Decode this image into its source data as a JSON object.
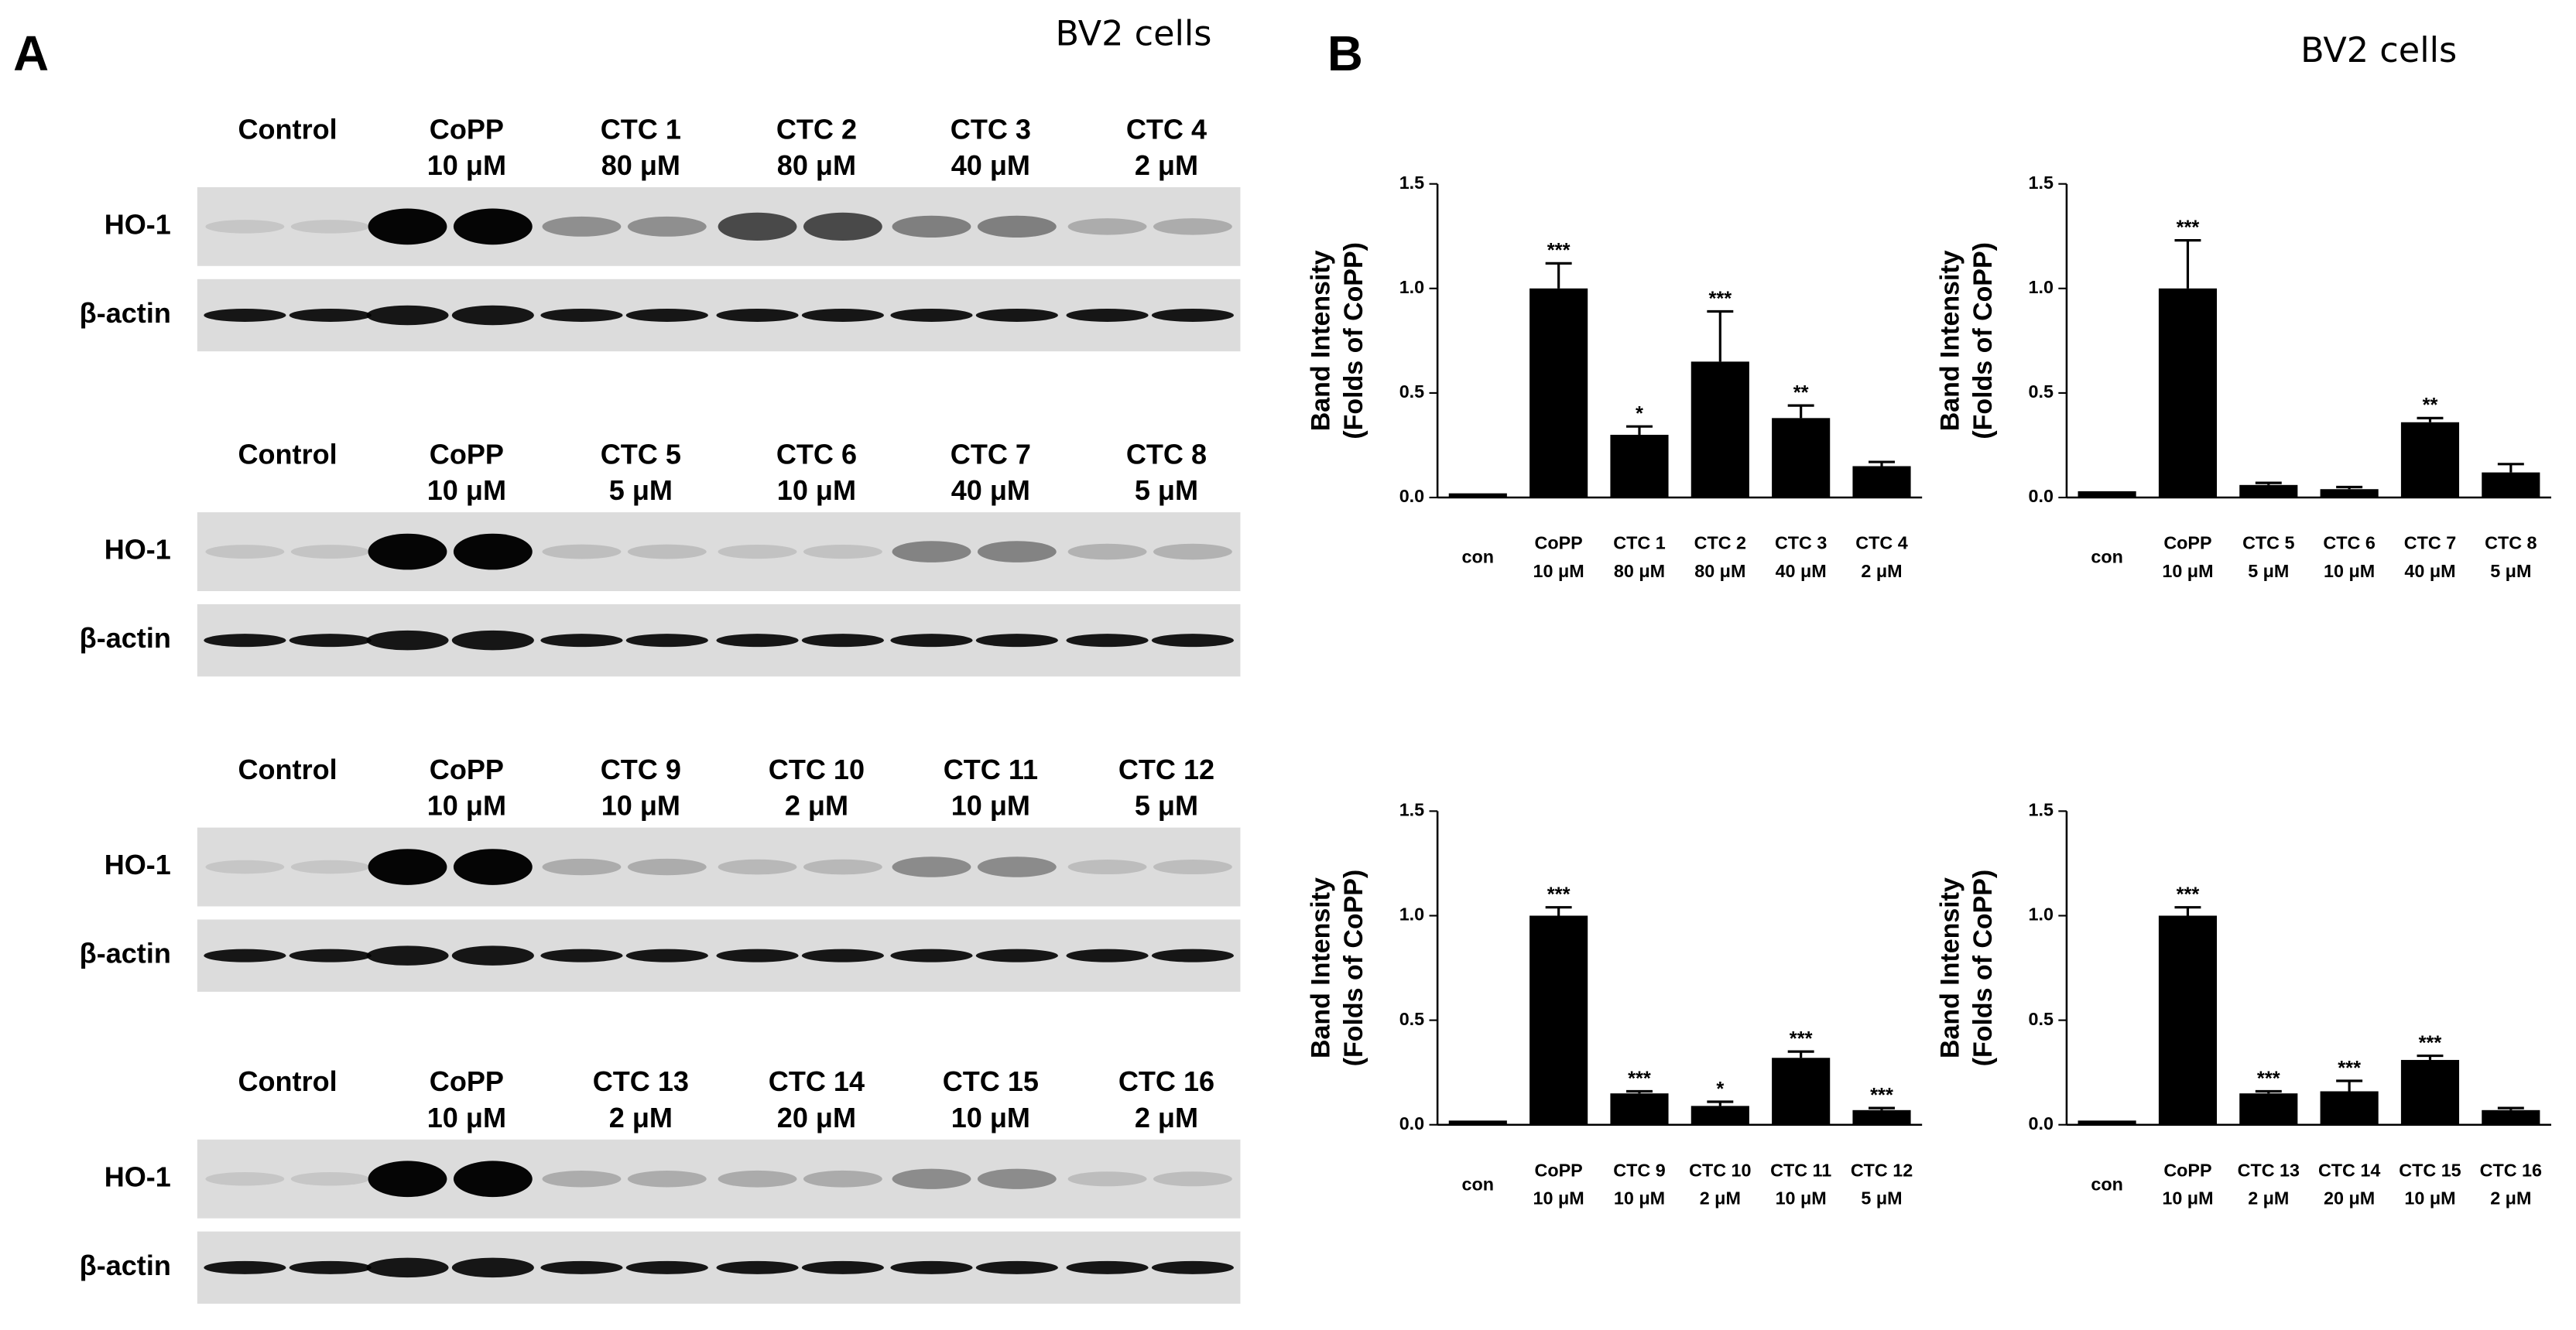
{
  "panel_a": {
    "label": "A",
    "title": "BV2 cells",
    "row_labels": [
      "HO-1",
      "β-actin"
    ],
    "blots": [
      {
        "lanes": [
          [
            "Control"
          ],
          [
            "CoPP",
            "10 μM"
          ],
          [
            "CTC 1",
            "80 μM"
          ],
          [
            "CTC 2",
            "80 μM"
          ],
          [
            "CTC 3",
            "40 μM"
          ],
          [
            "CTC 4",
            "2 μM"
          ]
        ]
      },
      {
        "lanes": [
          [
            "Control"
          ],
          [
            "CoPP",
            "10 μM"
          ],
          [
            "CTC 5",
            "5 μM"
          ],
          [
            "CTC 6",
            "10 μM"
          ],
          [
            "CTC 7",
            "40 μM"
          ],
          [
            "CTC 8",
            "5 μM"
          ]
        ]
      },
      {
        "lanes": [
          [
            "Control"
          ],
          [
            "CoPP",
            "10 μM"
          ],
          [
            "CTC 9",
            "10 μM"
          ],
          [
            "CTC 10",
            "2 μM"
          ],
          [
            "CTC 11",
            "10 μM"
          ],
          [
            "CTC 12",
            "5 μM"
          ]
        ]
      },
      {
        "lanes": [
          [
            "Control"
          ],
          [
            "CoPP",
            "10 μM"
          ],
          [
            "CTC 13",
            "2 μM"
          ],
          [
            "CTC 14",
            "20 μM"
          ],
          [
            "CTC 15",
            "10 μM"
          ],
          [
            "CTC 16",
            "2 μM"
          ]
        ]
      }
    ]
  },
  "panel_b": {
    "label": "B",
    "title": "BV2 cells"
  },
  "chart_data": [
    {
      "type": "bar",
      "ylabel": [
        "Band Intensity",
        "(Folds of CoPP)"
      ],
      "color": "#000000",
      "categories": [
        [
          "con"
        ],
        [
          "CoPP",
          "10 μM"
        ],
        [
          "CTC  1",
          "80 μM"
        ],
        [
          "CTC  2",
          "80 μM"
        ],
        [
          "CTC  3",
          "40 μM"
        ],
        [
          "CTC  4",
          "2 μM"
        ]
      ],
      "values": [
        0.02,
        1.0,
        0.3,
        0.65,
        0.38,
        0.15
      ],
      "errors": [
        0.0,
        0.12,
        0.04,
        0.24,
        0.06,
        0.02
      ],
      "annotations": [
        null,
        "***",
        "*",
        "***",
        "**",
        null
      ],
      "ylim": [
        0,
        1.5
      ],
      "yticks": [
        {
          "value": 0,
          "label": "0.0"
        },
        0.5,
        {
          "value": 1,
          "label": "1.0"
        },
        1.5
      ]
    },
    {
      "type": "bar",
      "ylabel": [
        "Band Intensity",
        "(Folds of CoPP)"
      ],
      "color": "#000000",
      "categories": [
        [
          "con"
        ],
        [
          "CoPP",
          "10 μM"
        ],
        [
          "CTC  5",
          "5 μM"
        ],
        [
          "CTC  6",
          "10 μM"
        ],
        [
          "CTC  7",
          "40 μM"
        ],
        [
          "CTC  8",
          "5 μM"
        ]
      ],
      "values": [
        0.03,
        1.0,
        0.06,
        0.04,
        0.36,
        0.12
      ],
      "errors": [
        0.0,
        0.23,
        0.01,
        0.01,
        0.02,
        0.04
      ],
      "annotations": [
        null,
        "***",
        null,
        null,
        "**",
        null
      ],
      "ylim": [
        0,
        1.5
      ],
      "yticks": [
        {
          "value": 0,
          "label": "0.0"
        },
        0.5,
        {
          "value": 1,
          "label": "1.0"
        },
        1.5
      ]
    },
    {
      "type": "bar",
      "ylabel": [
        "Band Intensity",
        "(Folds of CoPP)"
      ],
      "color": "#000000",
      "categories": [
        [
          "con"
        ],
        [
          "CoPP",
          "10 μM"
        ],
        [
          "CTC  9",
          "10 μM"
        ],
        [
          "CTC  10",
          "2 μM"
        ],
        [
          "CTC  11",
          "10 μM"
        ],
        [
          "CTC  12",
          "5 μM"
        ]
      ],
      "values": [
        0.02,
        1.0,
        0.15,
        0.09,
        0.32,
        0.07
      ],
      "errors": [
        0.0,
        0.04,
        0.01,
        0.02,
        0.03,
        0.01
      ],
      "annotations": [
        null,
        "***",
        "***",
        "*",
        "***",
        "***"
      ],
      "ylim": [
        0,
        1.5
      ],
      "yticks": [
        {
          "value": 0,
          "label": "0.0"
        },
        0.5,
        {
          "value": 1,
          "label": "1.0"
        },
        1.5
      ]
    },
    {
      "type": "bar",
      "ylabel": [
        "Band Intensity",
        "(Folds of CoPP)"
      ],
      "color": "#000000",
      "categories": [
        [
          "con"
        ],
        [
          "CoPP",
          "10 μM"
        ],
        [
          "CTC  13",
          "2 μM"
        ],
        [
          "CTC  14",
          "20 μM"
        ],
        [
          "CTC  15",
          "10 μM"
        ],
        [
          "CTC  16",
          "2 μM"
        ]
      ],
      "values": [
        0.02,
        1.0,
        0.15,
        0.16,
        0.31,
        0.07
      ],
      "errors": [
        0.0,
        0.04,
        0.01,
        0.05,
        0.02,
        0.01
      ],
      "annotations": [
        null,
        "***",
        "***",
        "***",
        "***",
        null
      ],
      "ylim": [
        0,
        1.5
      ],
      "yticks": [
        {
          "value": 0,
          "label": "0.0"
        },
        0.5,
        {
          "value": 1,
          "label": "1.0"
        },
        1.5
      ]
    }
  ]
}
